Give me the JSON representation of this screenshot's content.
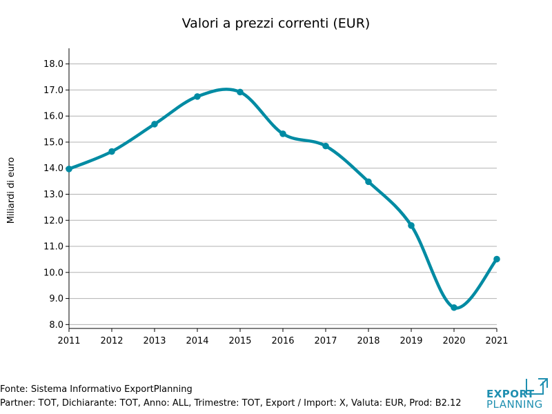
{
  "chart_data": {
    "type": "line",
    "title": "Valori a prezzi correnti (EUR)",
    "xlabel": "",
    "ylabel": "Miliardi di euro",
    "categories": [
      "2011",
      "2012",
      "2013",
      "2014",
      "2015",
      "2016",
      "2017",
      "2018",
      "2019",
      "2020",
      "2021"
    ],
    "series": [
      {
        "values": [
          13.97,
          14.64,
          15.69,
          16.75,
          16.92,
          15.32,
          14.85,
          13.48,
          11.8,
          8.65,
          10.51
        ]
      }
    ],
    "y_ticks": [
      "8.0",
      "9.0",
      "10.0",
      "11.0",
      "12.0",
      "13.0",
      "14.0",
      "15.0",
      "16.0",
      "17.0",
      "18.0"
    ],
    "ylim": [
      7.85,
      18.6
    ],
    "grid": "horizontal",
    "line_color": "#008ba3",
    "grid_color": "#b0b0b0"
  },
  "footer": {
    "source": "Fonte: Sistema Informativo ExportPlanning",
    "params": "Partner: TOT, Dichiarante: TOT, Anno: ALL, Trimestre: TOT, Export / Import: X, Valuta: EUR, Prod: B2.12"
  },
  "logo": {
    "word_1": "EXPORT",
    "word_2": "PLANNING",
    "color": "#1f8fb0"
  }
}
